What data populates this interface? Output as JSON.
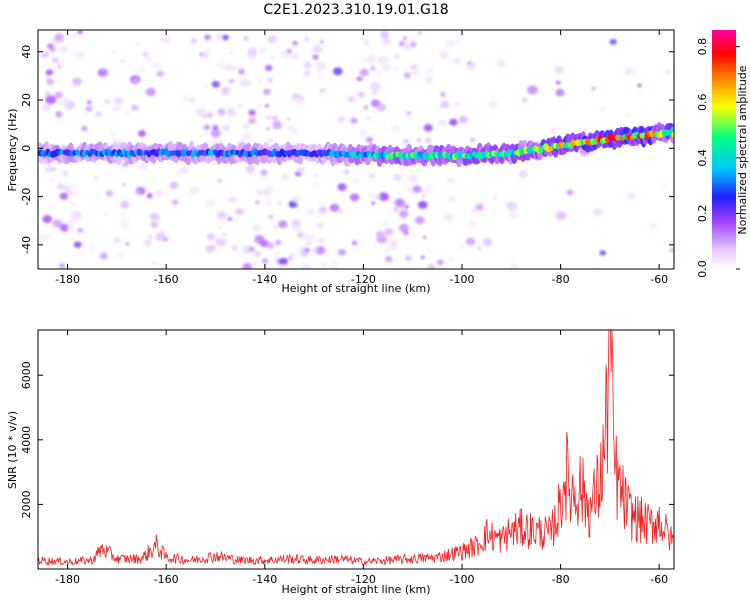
{
  "title": "C2E1.2023.310.19.01.G18",
  "chart_data": [
    {
      "type": "heatmap",
      "xlabel": "Height of straight line (km)",
      "ylabel": "Frequency (Hz)",
      "xlim": [
        -186,
        -57
      ],
      "ylim": [
        -50,
        49
      ],
      "xticks": [
        "-180",
        "-160",
        "-140",
        "-120",
        "-100",
        "-80",
        "-60"
      ],
      "yticks": [
        "40",
        "20",
        "0",
        "-20",
        "-40"
      ],
      "colorbar": {
        "label": "Normalized spectral amplitude",
        "range": [
          0.0,
          0.86
        ],
        "ticks": [
          "0.0",
          "0.2",
          "0.4",
          "0.6",
          "0.8"
        ],
        "colormap": [
          "#ffffff",
          "#e6c8ff",
          "#a040ff",
          "#2020ff",
          "#00c8ff",
          "#00ff80",
          "#ffff00",
          "#ff8000",
          "#ff0000",
          "#ff00a0"
        ]
      },
      "ridge": {
        "description_points_x": [
          -186,
          -170,
          -150,
          -130,
          -115,
          -100,
          -90,
          -80,
          -70,
          -60,
          -57
        ],
        "frequency_hz": [
          -2,
          -2,
          -2,
          -2,
          -3,
          -3,
          -2,
          1,
          4,
          6,
          6
        ],
        "peak_amplitude": [
          0.35,
          0.35,
          0.35,
          0.3,
          0.5,
          0.55,
          0.55,
          0.65,
          0.8,
          0.7,
          0.6
        ]
      }
    },
    {
      "type": "line",
      "xlabel": "Height of straight line (km)",
      "ylabel": "SNR (10 * v/v)",
      "xlim": [
        -186,
        -57
      ],
      "ylim": [
        0,
        7400
      ],
      "xticks": [
        "-180",
        "-160",
        "-140",
        "-120",
        "-100",
        "-80",
        "-60"
      ],
      "yticks": [
        "2000",
        "4000",
        "6000"
      ],
      "color": "#ee2222",
      "series": [
        {
          "x": [
            -186,
            -180,
            -175,
            -173,
            -170,
            -165,
            -162,
            -160,
            -155,
            -150,
            -145,
            -140,
            -135,
            -130,
            -125,
            -120,
            -115,
            -110,
            -105,
            -100,
            -97,
            -95,
            -92,
            -90,
            -88,
            -85,
            -82,
            -80,
            -79,
            -78,
            -76,
            -74,
            -72,
            -71,
            -70,
            -69,
            -68,
            -66,
            -64,
            -62,
            -60,
            -58,
            -57
          ],
          "values": [
            300,
            250,
            300,
            700,
            350,
            350,
            800,
            400,
            300,
            450,
            300,
            300,
            350,
            300,
            350,
            250,
            300,
            350,
            400,
            600,
            800,
            1200,
            1000,
            1300,
            1400,
            1300,
            1200,
            2200,
            3400,
            2600,
            2800,
            2000,
            3000,
            4300,
            7400,
            3400,
            2700,
            1900,
            1700,
            1500,
            1700,
            1100,
            900
          ]
        }
      ]
    }
  ]
}
